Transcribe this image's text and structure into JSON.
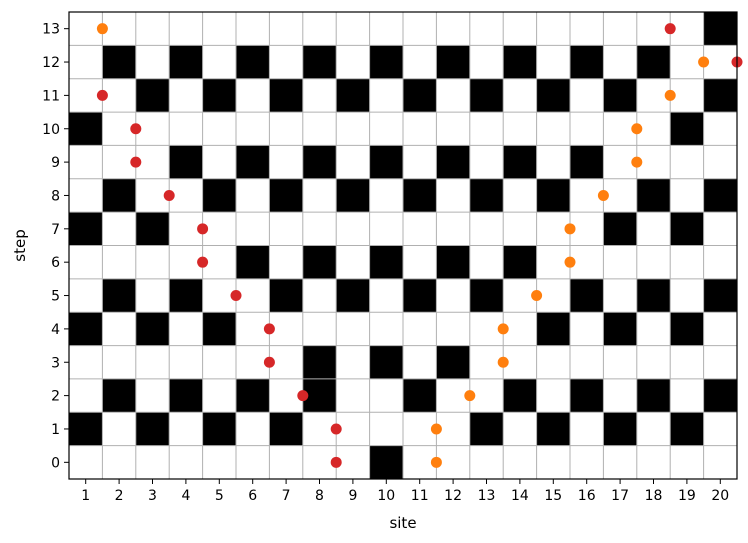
{
  "chart_data": {
    "type": "scatter",
    "title": "",
    "xlabel": "site",
    "ylabel": "step",
    "xlim": [
      0.5,
      20.5
    ],
    "ylim": [
      -0.5,
      13.5
    ],
    "xticks": [
      1,
      2,
      3,
      4,
      5,
      6,
      7,
      8,
      9,
      10,
      11,
      12,
      13,
      14,
      15,
      16,
      17,
      18,
      19,
      20
    ],
    "yticks": [
      0,
      1,
      2,
      3,
      4,
      5,
      6,
      7,
      8,
      9,
      10,
      11,
      12,
      13
    ],
    "grid": true,
    "grid_color": "#b0b0b0",
    "cell_fill_color": "#000000",
    "filled_cells": [
      {
        "step": 0,
        "sites": [
          10
        ]
      },
      {
        "step": 1,
        "sites": [
          1,
          3,
          5,
          7,
          13,
          15,
          17,
          19
        ]
      },
      {
        "step": 2,
        "sites": [
          2,
          4,
          6,
          8,
          11,
          14,
          16,
          18,
          20
        ]
      },
      {
        "step": 3,
        "sites": [
          8,
          10,
          12
        ]
      },
      {
        "step": 4,
        "sites": [
          1,
          3,
          5,
          15,
          17,
          19
        ]
      },
      {
        "step": 5,
        "sites": [
          2,
          4,
          7,
          9,
          11,
          13,
          16,
          18,
          20
        ]
      },
      {
        "step": 6,
        "sites": [
          6,
          8,
          10,
          12,
          14
        ]
      },
      {
        "step": 7,
        "sites": [
          1,
          3,
          17,
          19
        ]
      },
      {
        "step": 8,
        "sites": [
          2,
          5,
          7,
          9,
          11,
          13,
          15,
          18,
          20
        ]
      },
      {
        "step": 9,
        "sites": [
          4,
          6,
          8,
          10,
          12,
          14,
          16
        ]
      },
      {
        "step": 10,
        "sites": [
          1,
          19
        ]
      },
      {
        "step": 11,
        "sites": [
          3,
          5,
          7,
          9,
          11,
          13,
          15,
          17,
          20
        ]
      },
      {
        "step": 12,
        "sites": [
          2,
          4,
          6,
          8,
          10,
          12,
          14,
          16,
          18
        ]
      },
      {
        "step": 13,
        "sites": [
          20
        ]
      }
    ],
    "series": [
      {
        "color": "#d62728",
        "points": [
          [
            8.5,
            0
          ],
          [
            8.5,
            1
          ],
          [
            7.5,
            2
          ],
          [
            6.5,
            3
          ],
          [
            6.5,
            4
          ],
          [
            5.5,
            5
          ],
          [
            4.5,
            6
          ],
          [
            4.5,
            7
          ],
          [
            3.5,
            8
          ],
          [
            2.5,
            9
          ],
          [
            2.5,
            10
          ],
          [
            1.5,
            11
          ],
          [
            20.5,
            12
          ],
          [
            18.5,
            13
          ]
        ]
      },
      {
        "color": "#ff7f0e",
        "points": [
          [
            11.5,
            0
          ],
          [
            11.5,
            1
          ],
          [
            12.5,
            2
          ],
          [
            13.5,
            3
          ],
          [
            13.5,
            4
          ],
          [
            14.5,
            5
          ],
          [
            15.5,
            6
          ],
          [
            15.5,
            7
          ],
          [
            16.5,
            8
          ],
          [
            17.5,
            9
          ],
          [
            17.5,
            10
          ],
          [
            18.5,
            11
          ],
          [
            19.5,
            12
          ],
          [
            1.5,
            13
          ]
        ]
      }
    ]
  }
}
